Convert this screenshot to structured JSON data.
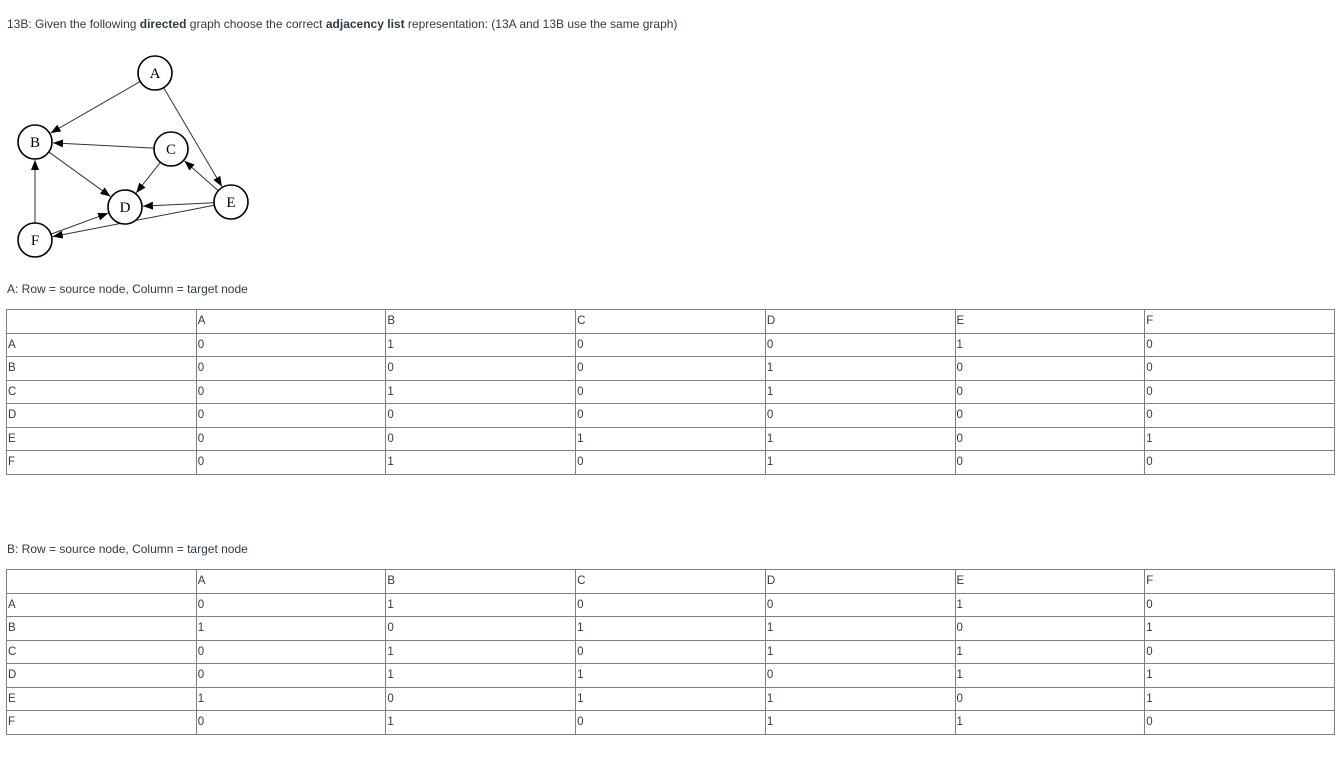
{
  "question": {
    "prefix": "13B: Given the following ",
    "bold1": "directed",
    "mid": " graph choose the correct ",
    "bold2": "adjacency list",
    "suffix": " representation: (13A and 13B use the same graph)"
  },
  "graph": {
    "nodes": [
      "A",
      "B",
      "C",
      "D",
      "E",
      "F"
    ],
    "edges": [
      [
        "A",
        "B"
      ],
      [
        "A",
        "E"
      ],
      [
        "C",
        "B"
      ],
      [
        "C",
        "D"
      ],
      [
        "E",
        "C"
      ],
      [
        "E",
        "D"
      ],
      [
        "E",
        "F"
      ],
      [
        "B",
        "D"
      ],
      [
        "F",
        "B"
      ],
      [
        "F",
        "D"
      ]
    ]
  },
  "options": [
    {
      "caption": "A: Row = source node, Column = target node",
      "columns": [
        "",
        "A",
        "B",
        "C",
        "D",
        "E",
        "F"
      ],
      "rows": [
        [
          "A",
          "0",
          "1",
          "0",
          "0",
          "1",
          "0"
        ],
        [
          "B",
          "0",
          "0",
          "0",
          "1",
          "0",
          "0"
        ],
        [
          "C",
          "0",
          "1",
          "0",
          "1",
          "0",
          "0"
        ],
        [
          "D",
          "0",
          "0",
          "0",
          "0",
          "0",
          "0"
        ],
        [
          "E",
          "0",
          "0",
          "1",
          "1",
          "0",
          "1"
        ],
        [
          "F",
          "0",
          "1",
          "0",
          "1",
          "0",
          "0"
        ]
      ]
    },
    {
      "caption": "B: Row = source node, Column = target node",
      "columns": [
        "",
        "A",
        "B",
        "C",
        "D",
        "E",
        "F"
      ],
      "rows": [
        [
          "A",
          "0",
          "1",
          "0",
          "0",
          "1",
          "0"
        ],
        [
          "B",
          "1",
          "0",
          "1",
          "1",
          "0",
          "1"
        ],
        [
          "C",
          "0",
          "1",
          "0",
          "1",
          "1",
          "0"
        ],
        [
          "D",
          "0",
          "1",
          "1",
          "0",
          "1",
          "1"
        ],
        [
          "E",
          "1",
          "0",
          "1",
          "1",
          "0",
          "1"
        ],
        [
          "F",
          "0",
          "1",
          "0",
          "1",
          "1",
          "0"
        ]
      ]
    }
  ]
}
